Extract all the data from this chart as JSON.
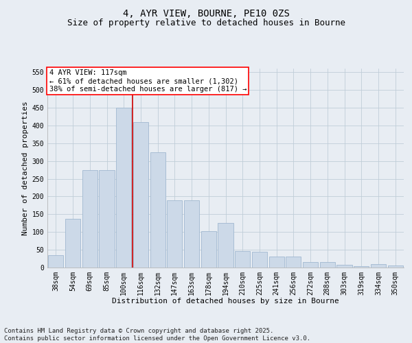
{
  "title": "4, AYR VIEW, BOURNE, PE10 0ZS",
  "subtitle": "Size of property relative to detached houses in Bourne",
  "xlabel": "Distribution of detached houses by size in Bourne",
  "ylabel": "Number of detached properties",
  "categories": [
    "38sqm",
    "54sqm",
    "69sqm",
    "85sqm",
    "100sqm",
    "116sqm",
    "132sqm",
    "147sqm",
    "163sqm",
    "178sqm",
    "194sqm",
    "210sqm",
    "225sqm",
    "241sqm",
    "256sqm",
    "272sqm",
    "288sqm",
    "303sqm",
    "319sqm",
    "334sqm",
    "350sqm"
  ],
  "values": [
    35,
    137,
    275,
    275,
    450,
    410,
    325,
    190,
    190,
    103,
    125,
    46,
    45,
    31,
    31,
    16,
    16,
    8,
    3,
    9,
    5
  ],
  "bar_color": "#ccd9e8",
  "bar_edge_color": "#a0b8d0",
  "vline_color": "#cc0000",
  "annotation_text": "4 AYR VIEW: 117sqm\n← 61% of detached houses are smaller (1,302)\n38% of semi-detached houses are larger (817) →",
  "ylim": [
    0,
    560
  ],
  "yticks": [
    0,
    50,
    100,
    150,
    200,
    250,
    300,
    350,
    400,
    450,
    500,
    550
  ],
  "grid_color": "#c0cdd8",
  "background_color": "#e8edf3",
  "footnote": "Contains HM Land Registry data © Crown copyright and database right 2025.\nContains public sector information licensed under the Open Government Licence v3.0.",
  "title_fontsize": 10,
  "subtitle_fontsize": 9,
  "axis_label_fontsize": 8,
  "tick_fontsize": 7,
  "annotation_fontsize": 7.5,
  "footnote_fontsize": 6.5
}
